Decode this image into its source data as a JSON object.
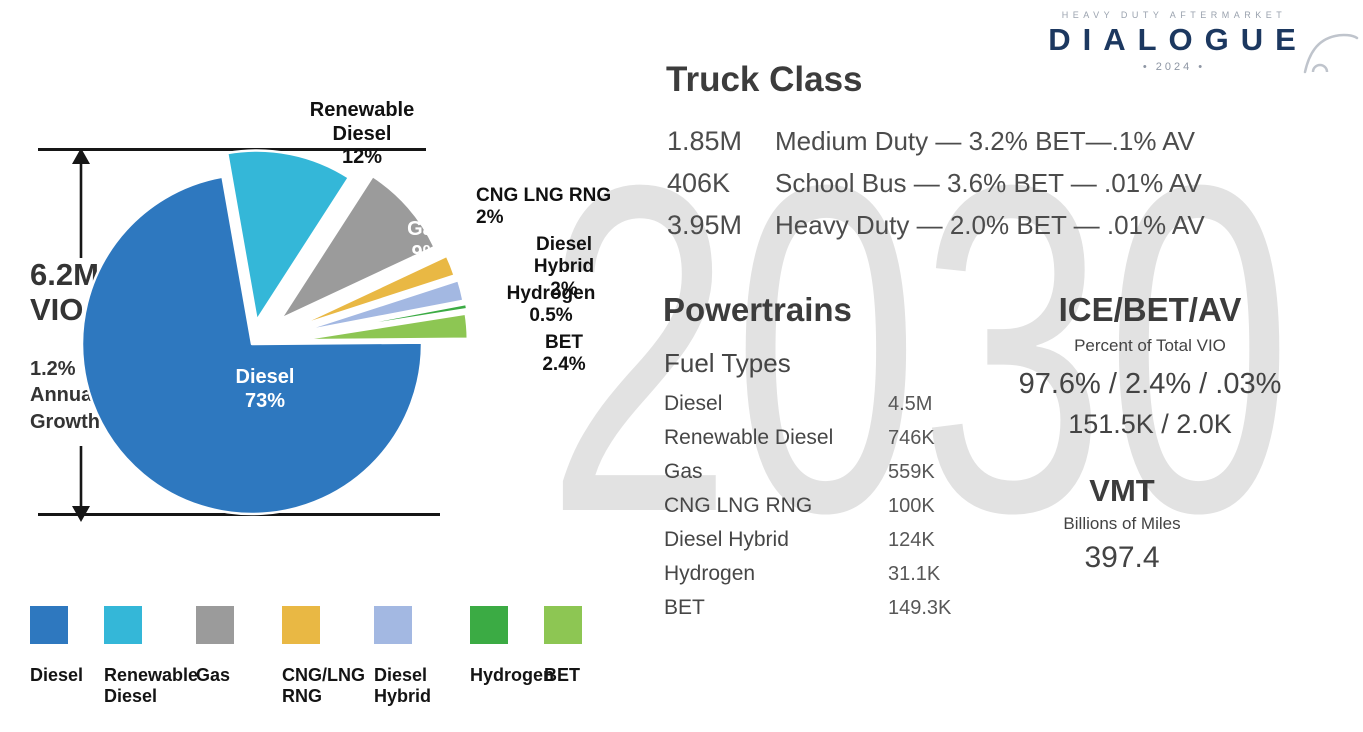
{
  "logo": {
    "tagline": "HEAVY DUTY AFTERMARKET",
    "name": "DIALOGUE",
    "year": "• 2024 •"
  },
  "watermark": "2030",
  "vio": {
    "value": "6.2M",
    "unit": "VIO",
    "growth_lines": [
      "1.2%",
      "Annual",
      "Growth"
    ]
  },
  "chart_data": {
    "type": "pie",
    "total": "6.2M VIO",
    "annual_growth": "1.2%",
    "legend_position": "bottom",
    "start_angle_deg": -100,
    "slices": [
      {
        "label": "Renewable Diesel",
        "value_pct": 12,
        "display": "12%",
        "color": "#34b7d8",
        "explode": 24
      },
      {
        "label": "Gas",
        "value_pct": 9,
        "display": "9%",
        "color": "#9b9b9b",
        "explode": 38
      },
      {
        "label": "CNG LNG RNG",
        "value_pct": 2,
        "display": "2%",
        "color": "#e9b844",
        "explode": 44
      },
      {
        "label": "Diesel Hybrid",
        "value_pct": 2,
        "display": "2%",
        "color": "#a3b8e2",
        "explode": 46
      },
      {
        "label": "Hydrogen",
        "value_pct": 0.5,
        "display": "0.5%",
        "color": "#3bab44",
        "explode": 48
      },
      {
        "label": "BET",
        "value_pct": 2.4,
        "display": "2.4%",
        "color": "#8dc653",
        "explode": 46
      },
      {
        "label": "Diesel",
        "value_pct": 73,
        "display": "73%",
        "color": "#2e78bf",
        "explode": 0
      }
    ]
  },
  "legend": [
    {
      "label": "Diesel",
      "color": "#2e78bf"
    },
    {
      "label": "Renewable Diesel",
      "color": "#34b7d8"
    },
    {
      "label": "Gas",
      "color": "#9b9b9b"
    },
    {
      "label": "CNG/LNG RNG",
      "color": "#e9b844"
    },
    {
      "label": "Diesel Hybrid",
      "color": "#a3b8e2"
    },
    {
      "label": "Hydrogen",
      "color": "#3bab44"
    },
    {
      "label": "BET",
      "color": "#8dc653"
    }
  ],
  "truck_class": {
    "title": "Truck Class",
    "rows": [
      {
        "value": "1.85M",
        "desc": "Medium Duty — 3.2% BET—.1% AV"
      },
      {
        "value": "406K",
        "desc": "School Bus — 3.6% BET — .01% AV"
      },
      {
        "value": "3.95M",
        "desc": "Heavy Duty — 2.0% BET — .01% AV"
      }
    ]
  },
  "powertrains": {
    "title": "Powertrains",
    "subtitle": "Fuel Types",
    "rows": [
      {
        "label": "Diesel",
        "value": "4.5M"
      },
      {
        "label": "Renewable Diesel",
        "value": "746K"
      },
      {
        "label": "Gas",
        "value": "559K"
      },
      {
        "label": "CNG LNG RNG",
        "value": "100K"
      },
      {
        "label": "Diesel Hybrid",
        "value": "124K"
      },
      {
        "label": "Hydrogen",
        "value": "31.1K"
      },
      {
        "label": "BET",
        "value": "149.3K"
      }
    ]
  },
  "ice_bet_av": {
    "title": "ICE/BET/AV",
    "subtitle": "Percent of Total VIO",
    "line1": "97.6% / 2.4% / .03%",
    "line2": "151.5K / 2.0K"
  },
  "vmt": {
    "title": "VMT",
    "subtitle": "Billions of Miles",
    "value": "397.4"
  }
}
